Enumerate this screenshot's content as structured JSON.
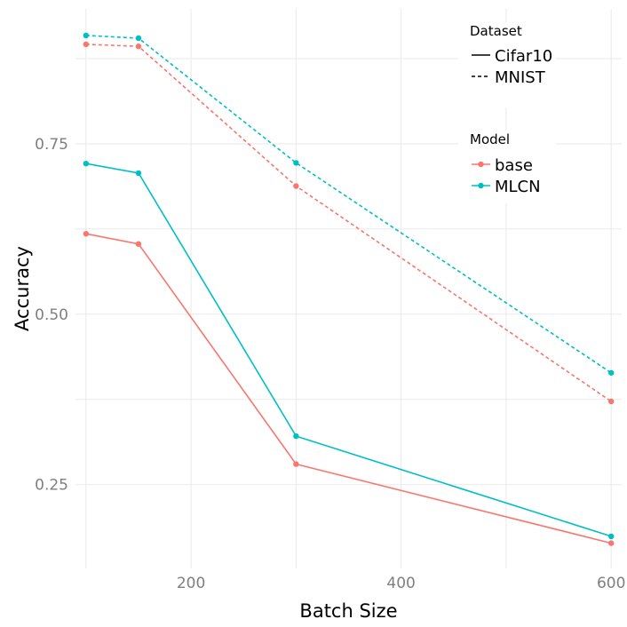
{
  "chart_data": {
    "type": "line",
    "title": "",
    "xlabel": "Batch Size",
    "ylabel": "Accuracy",
    "xlim": [
      90,
      610
    ],
    "ylim": [
      0.127,
      0.948
    ],
    "x_ticks": [
      200,
      400,
      600
    ],
    "x_tick_labels": [
      "200",
      "400",
      "600"
    ],
    "y_ticks": [
      0.25,
      0.5,
      0.75
    ],
    "y_tick_labels": [
      "0.25",
      "0.50",
      "0.75"
    ],
    "grid": true,
    "x": [
      100,
      150,
      300,
      600
    ],
    "series": [
      {
        "name": "base Cifar10",
        "model": "base",
        "dataset": "Cifar10",
        "color": "#F8766D",
        "linetype": "solid",
        "values": [
          0.618,
          0.603,
          0.28,
          0.164
        ]
      },
      {
        "name": "MLCN Cifar10",
        "model": "MLCN",
        "dataset": "Cifar10",
        "color": "#00BFC4",
        "linetype": "solid",
        "values": [
          0.721,
          0.707,
          0.321,
          0.174
        ]
      },
      {
        "name": "base MNIST",
        "model": "base",
        "dataset": "MNIST",
        "color": "#F8766D",
        "linetype": "dashed",
        "values": [
          0.896,
          0.893,
          0.688,
          0.372
        ]
      },
      {
        "name": "MLCN MNIST",
        "model": "MLCN",
        "dataset": "MNIST",
        "color": "#00BFC4",
        "linetype": "dashed",
        "values": [
          0.909,
          0.905,
          0.722,
          0.414
        ]
      }
    ],
    "legend": {
      "position": "top-right",
      "dataset": {
        "title": "Dataset",
        "entries": [
          {
            "label": "Cifar10",
            "linetype": "solid"
          },
          {
            "label": "MNIST",
            "linetype": "dashed"
          }
        ]
      },
      "model": {
        "title": "Model",
        "entries": [
          {
            "label": "base",
            "color": "#F8766D"
          },
          {
            "label": "MLCN",
            "color": "#00BFC4"
          }
        ]
      }
    }
  }
}
